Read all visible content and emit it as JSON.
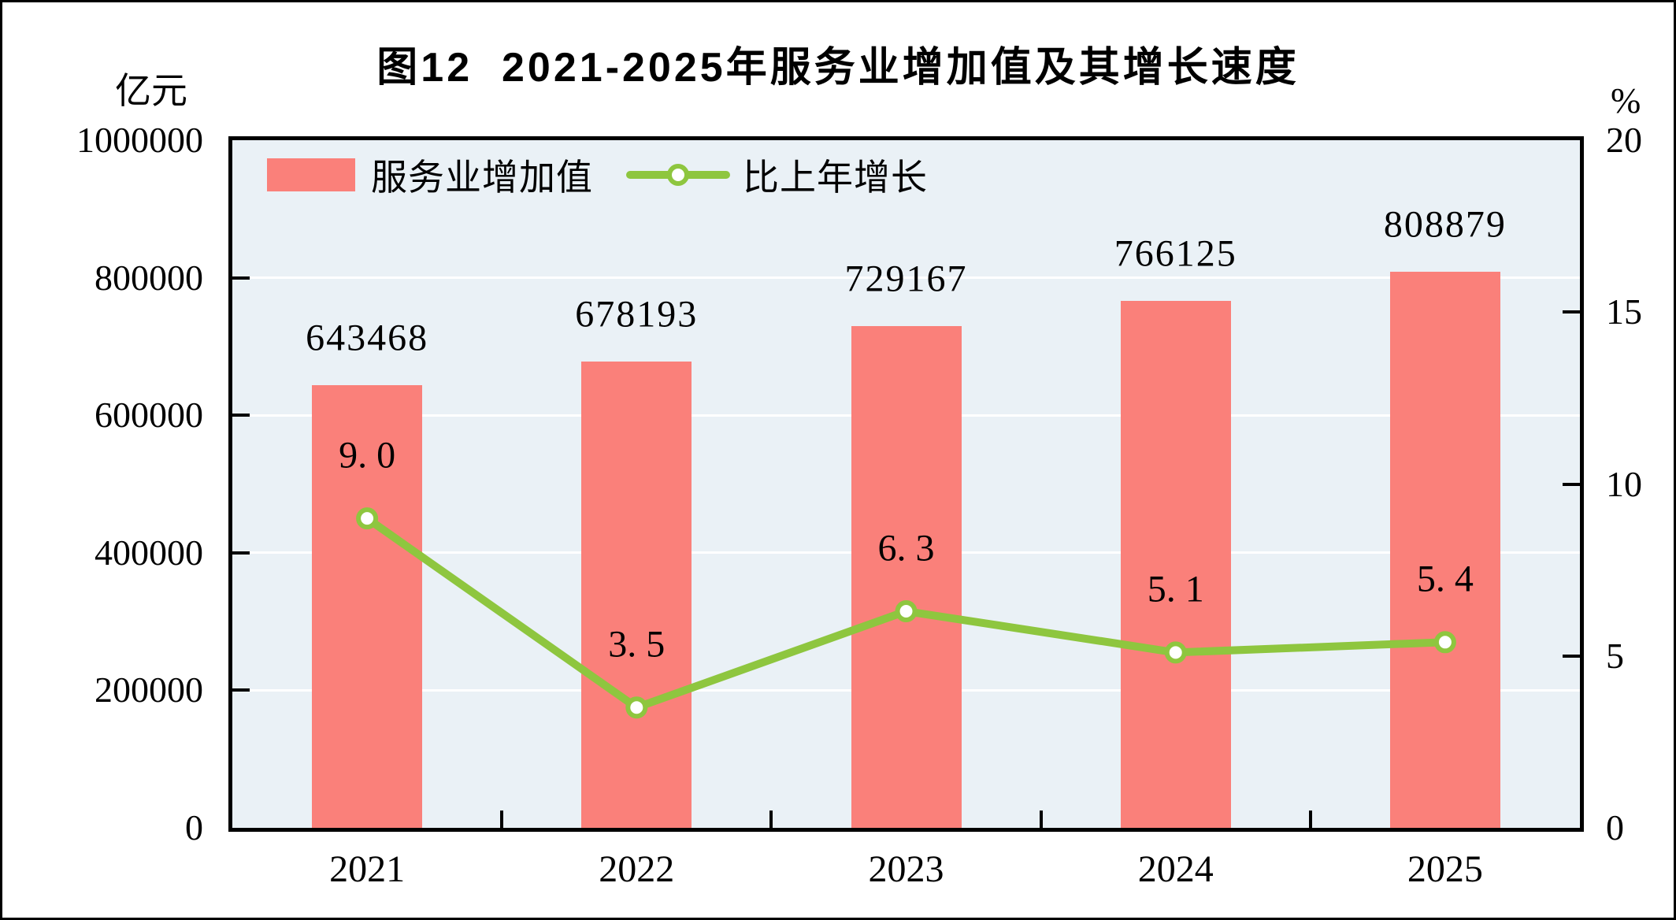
{
  "figure": {
    "title": "图12  2021-2025年服务业增加值及其增长速度",
    "left_axis_unit": "亿元",
    "right_axis_unit": "%"
  },
  "legend": {
    "bar_series_label": "服务业增加值",
    "line_series_label": "比上年增长"
  },
  "colors": {
    "bar": "#fa807a",
    "line": "#8ec63f",
    "marker_fill": "#ffffff",
    "plot_background": "#eaf1f6",
    "gridline": "#ffffff",
    "axis": "#000000",
    "text": "#000000"
  },
  "chart_data": {
    "type": "bar",
    "combo": "bar+line",
    "title": "图12  2021-2025年服务业增加值及其增长速度",
    "categories": [
      "2021",
      "2022",
      "2023",
      "2024",
      "2025"
    ],
    "series": [
      {
        "name": "服务业增加值",
        "type": "bar",
        "axis": "left",
        "unit": "亿元",
        "values": [
          643468,
          678193,
          729167,
          766125,
          808879
        ],
        "labels": [
          "643468",
          "678193",
          "729167",
          "766125",
          "808879"
        ]
      },
      {
        "name": "比上年增长",
        "type": "line",
        "axis": "right",
        "unit": "%",
        "values": [
          9.0,
          3.5,
          6.3,
          5.1,
          5.4
        ],
        "labels": [
          "9. 0",
          "3. 5",
          "6. 3",
          "5. 1",
          "5. 4"
        ]
      }
    ],
    "left_axis": {
      "label": "亿元",
      "min": 0,
      "max": 1000000,
      "ticks": [
        0,
        200000,
        400000,
        600000,
        800000,
        1000000
      ],
      "tick_labels": [
        "0",
        "200000",
        "400000",
        "600000",
        "800000",
        "1000000"
      ]
    },
    "right_axis": {
      "label": "%",
      "min": 0,
      "max": 20,
      "ticks": [
        0,
        5,
        10,
        15,
        20
      ],
      "tick_labels": [
        "0",
        "5",
        "10",
        "15",
        "20"
      ]
    },
    "grid": "horizontal white gridlines at left-axis major ticks",
    "legend_position": "top-left inside plot area"
  }
}
